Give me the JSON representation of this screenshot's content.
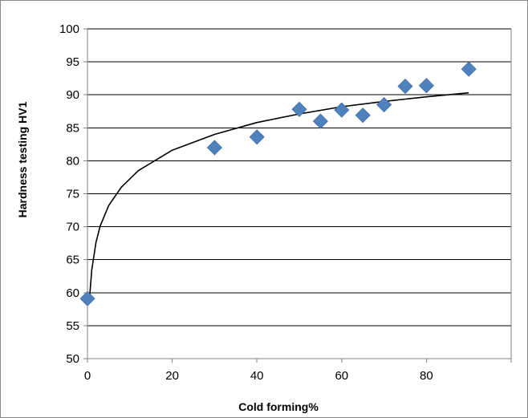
{
  "chart_data": {
    "type": "scatter",
    "title": "",
    "xlabel": "Cold forming%",
    "ylabel": "Hardness testing HV1",
    "xlim": [
      0,
      100
    ],
    "ylim": [
      50,
      100
    ],
    "x_ticks": [
      0,
      20,
      40,
      60,
      80
    ],
    "y_ticks": [
      50,
      55,
      60,
      65,
      70,
      75,
      80,
      85,
      90,
      95,
      100
    ],
    "grid": "horizontal",
    "legend": "none",
    "series": [
      {
        "marker": "diamond",
        "color": "#4f81bd",
        "x": [
          0,
          30,
          40,
          50,
          55,
          60,
          65,
          70,
          75,
          80,
          90
        ],
        "y": [
          59.1,
          82,
          83.6,
          87.8,
          86,
          87.7,
          86.9,
          88.5,
          91.3,
          91.4,
          93.9
        ]
      }
    ],
    "trendline": {
      "type": "logarithmic",
      "color": "#000000",
      "x_range": [
        0.5,
        90
      ],
      "points": [
        [
          0.5,
          59.2
        ],
        [
          1,
          63.4
        ],
        [
          2,
          67.6
        ],
        [
          3,
          70.1
        ],
        [
          5,
          73.2
        ],
        [
          8,
          76.0
        ],
        [
          12,
          78.5
        ],
        [
          20,
          81.6
        ],
        [
          30,
          84.0
        ],
        [
          40,
          85.8
        ],
        [
          50,
          87.1
        ],
        [
          60,
          88.2
        ],
        [
          70,
          89.0
        ],
        [
          80,
          89.7
        ],
        [
          90,
          90.3
        ]
      ]
    }
  }
}
